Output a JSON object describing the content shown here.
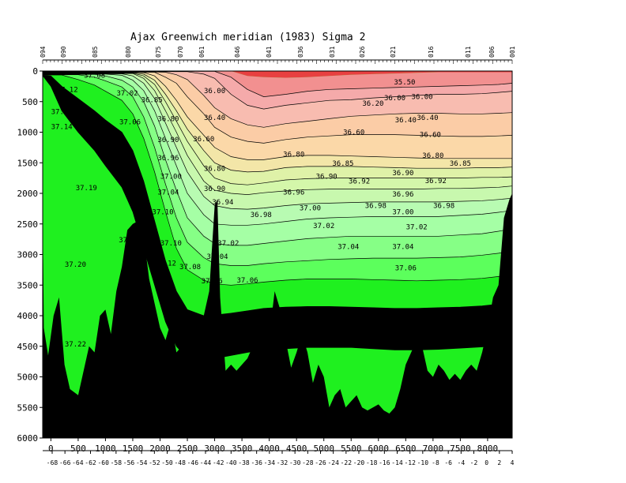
{
  "chart_data": {
    "type": "contour",
    "title": "Ajax Greenwich meridian (1983) Sigma 2",
    "xlabel": "",
    "ylabel": "",
    "x_range_km": [
      -150,
      8450
    ],
    "y_range_m": [
      0,
      6000
    ],
    "y_reversed": true,
    "x_ticks": [
      "0",
      "500",
      "1000",
      "1500",
      "2000",
      "2500",
      "3000",
      "3500",
      "4000",
      "4500",
      "5000",
      "5500",
      "6000",
      "6500",
      "7000",
      "7500",
      "8000"
    ],
    "y_ticks": [
      "0",
      "500",
      "1000",
      "1500",
      "2000",
      "2500",
      "3000",
      "3500",
      "4000",
      "4500",
      "5000",
      "5500",
      "6000"
    ],
    "latitude_ticks": [
      "-68",
      "-66",
      "-64",
      "-62",
      "-60",
      "-58",
      "-56",
      "-54",
      "-52",
      "-50",
      "-48",
      "-46",
      "-44",
      "-42",
      "-40",
      "-38",
      "-36",
      "-34",
      "-32",
      "-30",
      "-28",
      "-26",
      "-24",
      "-22",
      "-20",
      "-18",
      "-16",
      "-14",
      "-12",
      "-10",
      "-8",
      "-6",
      "-4",
      "-2",
      "0",
      "2",
      "4"
    ],
    "station_labels": [
      "094",
      "090",
      "085",
      "080",
      "075",
      "070",
      "061",
      "046",
      "041",
      "036",
      "031",
      "026",
      "021",
      "016",
      "011",
      "006",
      "001"
    ],
    "contour_levels": [
      35.5,
      36.0,
      36.2,
      36.4,
      36.6,
      36.8,
      36.85,
      36.9,
      36.92,
      36.94,
      36.96,
      36.98,
      37.0,
      37.02,
      37.04,
      37.06,
      37.08,
      37.1,
      37.12,
      37.14,
      37.19,
      37.2,
      37.22
    ],
    "band_colors": [
      "#e84040",
      "#f29090",
      "#f5aaaa",
      "#f8bcb0",
      "#fbcca6",
      "#fbd8a8",
      "#f3e6a8",
      "#dff2a8",
      "#d4f7aa",
      "#c8f8ae",
      "#b8fbb2",
      "#a5ffa5",
      "#86ff86",
      "#5cff5c",
      "#1ff01f"
    ],
    "seafloor_color": "#000000",
    "contour_labels": [
      {
        "text": "35.50",
        "x": 6480,
        "y": 220
      },
      {
        "text": "36.00",
        "x": 3000,
        "y": 360
      },
      {
        "text": "36.00",
        "x": 6300,
        "y": 480
      },
      {
        "text": "36.00",
        "x": 6800,
        "y": 460
      },
      {
        "text": "36.20",
        "x": 5900,
        "y": 570
      },
      {
        "text": "36.40",
        "x": 3000,
        "y": 800
      },
      {
        "text": "36.40",
        "x": 6500,
        "y": 840
      },
      {
        "text": "36.40",
        "x": 6900,
        "y": 800
      },
      {
        "text": "36.60",
        "x": 2800,
        "y": 1150
      },
      {
        "text": "36.60",
        "x": 5550,
        "y": 1040
      },
      {
        "text": "36.60",
        "x": 6950,
        "y": 1080
      },
      {
        "text": "36.80",
        "x": 3000,
        "y": 1630
      },
      {
        "text": "36.80",
        "x": 4450,
        "y": 1400
      },
      {
        "text": "36.80",
        "x": 7000,
        "y": 1420
      },
      {
        "text": "36.85",
        "x": 5350,
        "y": 1550
      },
      {
        "text": "36.85",
        "x": 7500,
        "y": 1550
      },
      {
        "text": "36.90",
        "x": 3000,
        "y": 1960
      },
      {
        "text": "36.90",
        "x": 5050,
        "y": 1760
      },
      {
        "text": "36.90",
        "x": 6450,
        "y": 1700
      },
      {
        "text": "36.92",
        "x": 5650,
        "y": 1840
      },
      {
        "text": "36.92",
        "x": 7050,
        "y": 1830
      },
      {
        "text": "36.94",
        "x": 3150,
        "y": 2180
      },
      {
        "text": "36.96",
        "x": 4450,
        "y": 2020
      },
      {
        "text": "36.96",
        "x": 6450,
        "y": 2050
      },
      {
        "text": "36.98",
        "x": 3850,
        "y": 2390
      },
      {
        "text": "36.98",
        "x": 5950,
        "y": 2240
      },
      {
        "text": "36.98",
        "x": 7200,
        "y": 2240
      },
      {
        "text": "37.00",
        "x": 4750,
        "y": 2280
      },
      {
        "text": "37.00",
        "x": 6450,
        "y": 2340
      },
      {
        "text": "37.02",
        "x": 3250,
        "y": 2850
      },
      {
        "text": "37.02",
        "x": 5000,
        "y": 2570
      },
      {
        "text": "37.02",
        "x": 6700,
        "y": 2590
      },
      {
        "text": "37.04",
        "x": 3050,
        "y": 3070
      },
      {
        "text": "37.04",
        "x": 5450,
        "y": 2910
      },
      {
        "text": "37.04",
        "x": 6450,
        "y": 2910
      },
      {
        "text": "37.06",
        "x": 2950,
        "y": 3470
      },
      {
        "text": "37.06",
        "x": 3600,
        "y": 3460
      },
      {
        "text": "37.06",
        "x": 6500,
        "y": 3260
      },
      {
        "text": "37.08",
        "x": 800,
        "y": 110
      },
      {
        "text": "37.08",
        "x": 2550,
        "y": 3240
      },
      {
        "text": "37.08",
        "x": 6650,
        "y": 4000
      },
      {
        "text": "37.08",
        "x": 4550,
        "y": 4100
      },
      {
        "text": "37.00",
        "x": 8250,
        "y": 3900
      },
      {
        "text": "37.10",
        "x": 2200,
        "y": 2850
      },
      {
        "text": "37.10",
        "x": 2050,
        "y": 2340
      },
      {
        "text": "37.10",
        "x": 8050,
        "y": 5050
      },
      {
        "text": "37.12",
        "x": 300,
        "y": 340
      },
      {
        "text": "37.12",
        "x": 200,
        "y": 700
      },
      {
        "text": "37.12",
        "x": 2100,
        "y": 3180
      },
      {
        "text": "37.14",
        "x": 200,
        "y": 950
      },
      {
        "text": "37.14",
        "x": 1400,
        "y": 1590
      },
      {
        "text": "37.19",
        "x": 650,
        "y": 1950
      },
      {
        "text": "37.2",
        "x": 1400,
        "y": 2800
      },
      {
        "text": "37.20",
        "x": 450,
        "y": 3200
      },
      {
        "text": "37.22",
        "x": 450,
        "y": 4500
      },
      {
        "text": "37.02",
        "x": 1400,
        "y": 400
      },
      {
        "text": "36.85",
        "x": 1850,
        "y": 510
      },
      {
        "text": "36.80",
        "x": 2150,
        "y": 820
      },
      {
        "text": "36.90",
        "x": 2150,
        "y": 1160
      },
      {
        "text": "36.96",
        "x": 2150,
        "y": 1460
      },
      {
        "text": "37.00",
        "x": 2200,
        "y": 1760
      },
      {
        "text": "37.04",
        "x": 2150,
        "y": 2020
      },
      {
        "text": "37.06",
        "x": 1450,
        "y": 870
      },
      {
        "text": "37.0",
        "x": 1450,
        "y": 3450
      }
    ]
  }
}
